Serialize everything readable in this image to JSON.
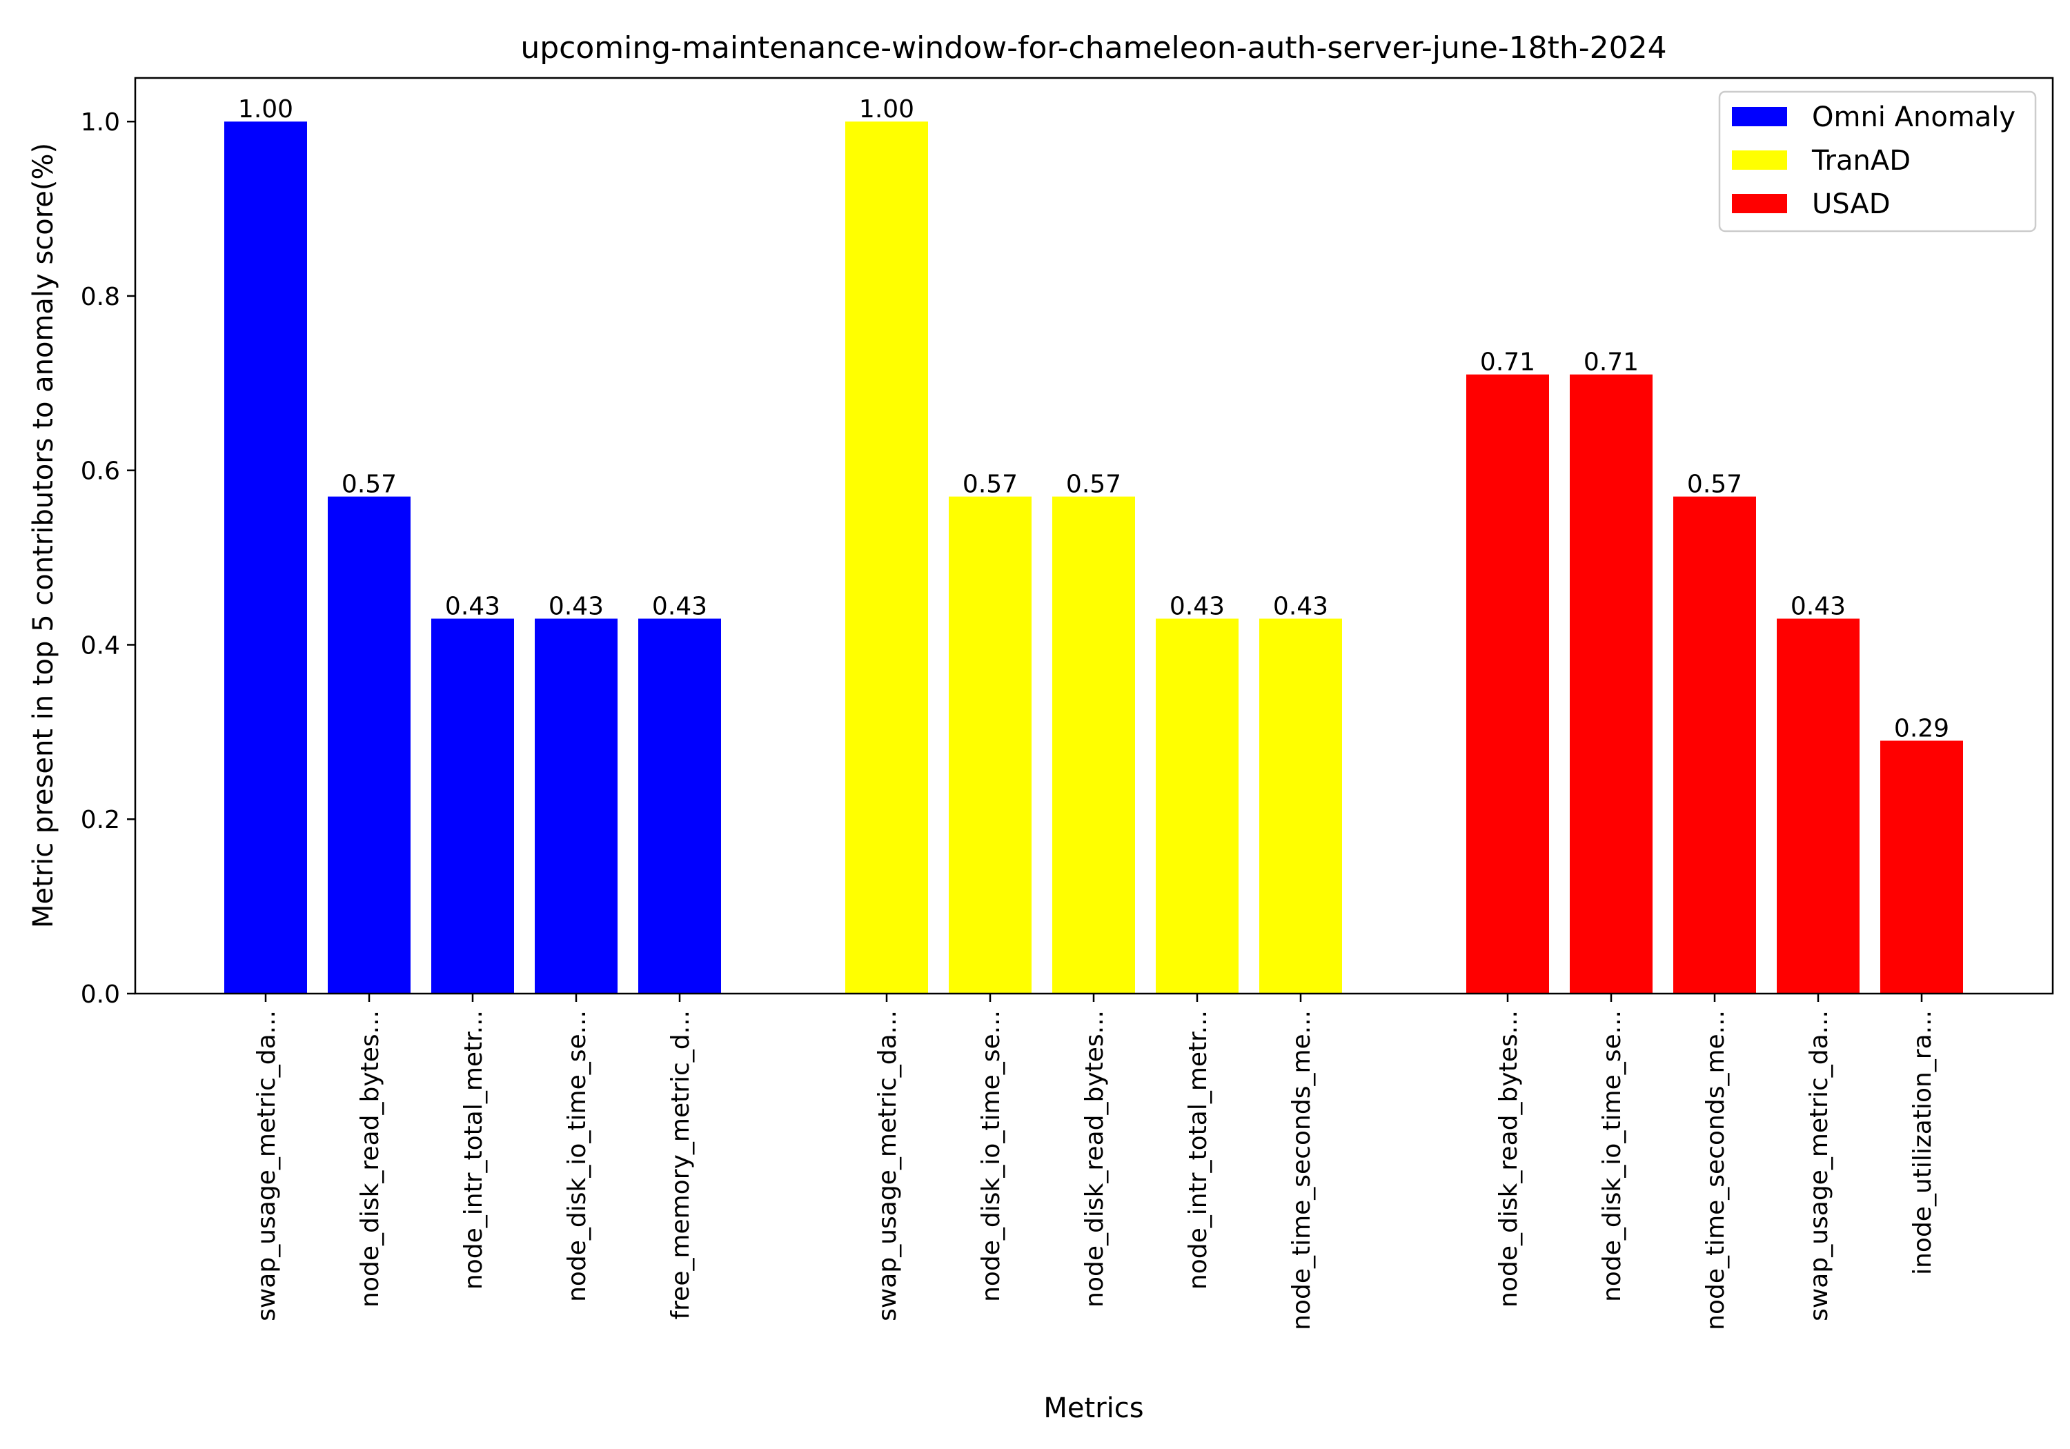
{
  "chart_data": {
    "type": "bar",
    "title": "upcoming-maintenance-window-for-chameleon-auth-server-june-18th-2024",
    "xlabel": "Metrics",
    "ylabel": "Metric present in top 5 contributors to anomaly score(%)",
    "ylim": [
      0,
      1.05
    ],
    "yticks": [
      "0.0",
      "0.2",
      "0.4",
      "0.6",
      "0.8",
      "1.0"
    ],
    "ytick_values": [
      0,
      0.2,
      0.4,
      0.6,
      0.8,
      1.0
    ],
    "grid": false,
    "legend_position": "top-right",
    "series": [
      {
        "name": "Omni Anomaly",
        "color": "#0000ff",
        "categories": [
          "swap_usage_metric_da...",
          "node_disk_read_bytes...",
          "node_intr_total_metr...",
          "node_disk_io_time_se...",
          "free_memory_metric_d..."
        ],
        "values": [
          1.0,
          0.57,
          0.43,
          0.43,
          0.43
        ],
        "labels": [
          "1.00",
          "0.57",
          "0.43",
          "0.43",
          "0.43"
        ]
      },
      {
        "name": "TranAD",
        "color": "#ffff00",
        "categories": [
          "swap_usage_metric_da...",
          "node_disk_io_time_se...",
          "node_disk_read_bytes...",
          "node_intr_total_metr...",
          "node_time_seconds_me..."
        ],
        "values": [
          1.0,
          0.57,
          0.57,
          0.43,
          0.43
        ],
        "labels": [
          "1.00",
          "0.57",
          "0.57",
          "0.43",
          "0.43"
        ]
      },
      {
        "name": "USAD",
        "color": "#ff0000",
        "categories": [
          "node_disk_read_bytes...",
          "node_disk_io_time_se...",
          "node_time_seconds_me...",
          "swap_usage_metric_da...",
          "inode_utilization_ra..."
        ],
        "values": [
          0.71,
          0.71,
          0.57,
          0.43,
          0.29
        ],
        "labels": [
          "0.71",
          "0.71",
          "0.57",
          "0.43",
          "0.29"
        ]
      }
    ]
  }
}
